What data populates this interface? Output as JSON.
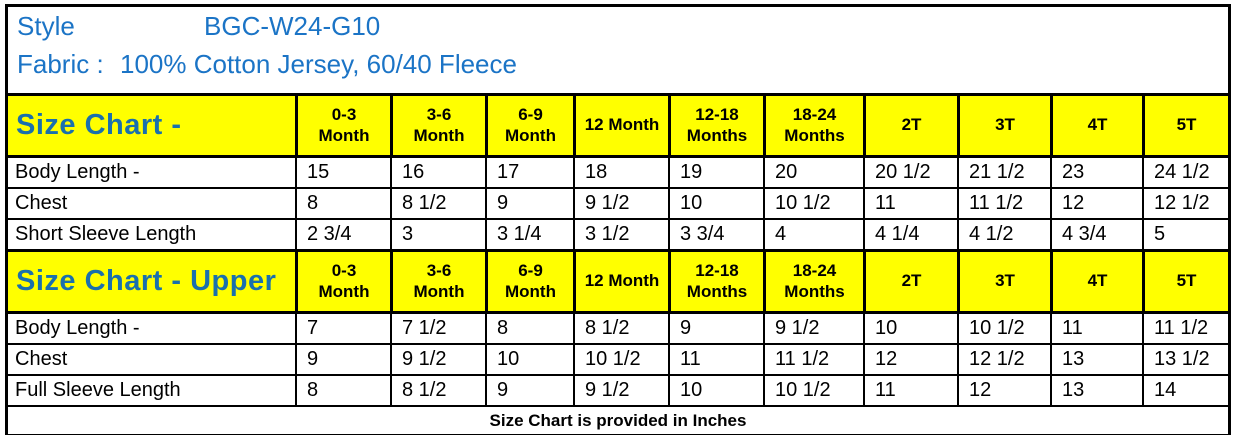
{
  "info": {
    "style_label": "Style",
    "style_value": "BGC-W24-G10",
    "fabric_label": "Fabric :",
    "fabric_value": "100% Cotton Jersey, 60/40 Fleece"
  },
  "columns": [
    "0-3\nMonth",
    "3-6\nMonth",
    "6-9\nMonth",
    "12 Month",
    "12-18\nMonths",
    "18-24\nMonths",
    "2T",
    "3T",
    "4T",
    "5T"
  ],
  "tables": [
    {
      "title": "Size Chart -",
      "rows": [
        {
          "label": "Body Length -",
          "values": [
            "15",
            "16",
            "17",
            "18",
            "19",
            "20",
            "20 1/2",
            "21 1/2",
            "23",
            "24 1/2"
          ]
        },
        {
          "label": "Chest",
          "values": [
            "8",
            "8 1/2",
            "9",
            "9 1/2",
            "10",
            "10 1/2",
            "11",
            "11 1/2",
            "12",
            "12 1/2"
          ]
        },
        {
          "label": "Short Sleeve Length",
          "values": [
            "2 3/4",
            "3",
            "3 1/4",
            "3 1/2",
            "3 3/4",
            "4",
            "4 1/4",
            "4 1/2",
            "4 3/4",
            "5"
          ]
        }
      ]
    },
    {
      "title": "Size Chart - Upper",
      "rows": [
        {
          "label": "Body Length -",
          "values": [
            "7",
            "7 1/2",
            "8",
            "8 1/2",
            "9",
            "9 1/2",
            "10",
            "10 1/2",
            "11",
            "11 1/2"
          ]
        },
        {
          "label": "Chest",
          "values": [
            "9",
            "9 1/2",
            "10",
            "10 1/2",
            "11",
            "11 1/2",
            "12",
            "12 1/2",
            "13",
            "13 1/2"
          ]
        },
        {
          "label": "Full Sleeve Length",
          "values": [
            "8",
            "8 1/2",
            "9",
            "9 1/2",
            "10",
            "10 1/2",
            "11",
            "12",
            "13",
            "14"
          ]
        }
      ]
    }
  ],
  "footer": {
    "note": "Size Chart is provided in Inches"
  },
  "colors": {
    "header_bg": "#FFFF00",
    "info_text": "#1B74C6",
    "title_text": "#1A70AD",
    "border": "#000000"
  }
}
